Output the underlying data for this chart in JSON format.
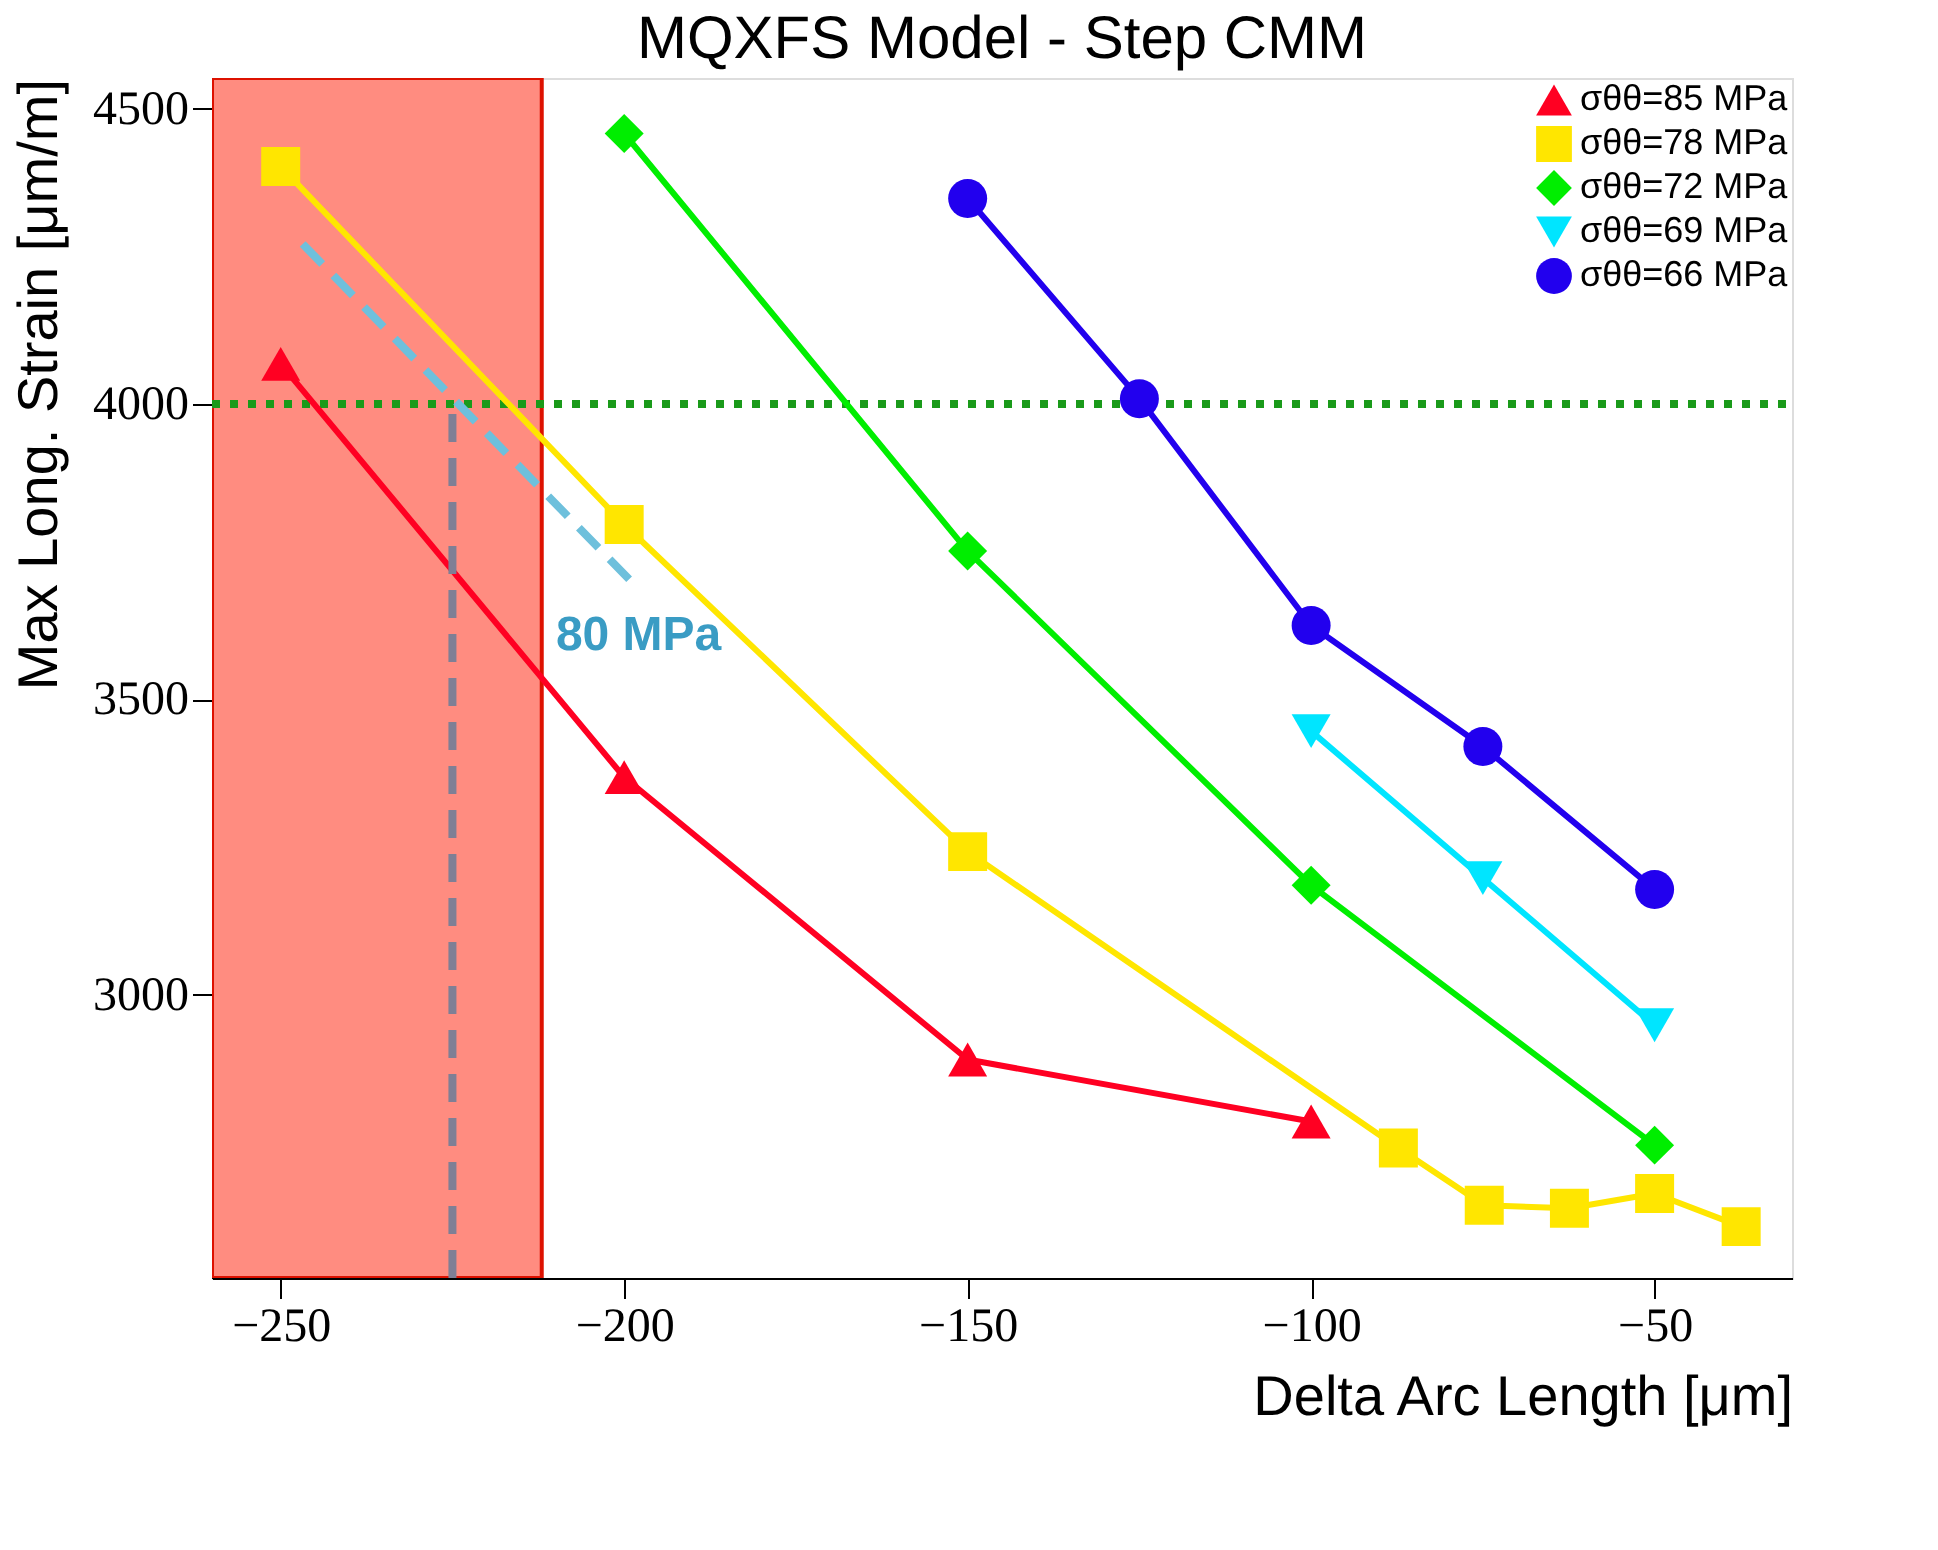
{
  "chart_data": {
    "type": "line",
    "title": "MQXFS Model - Step CMM",
    "xlabel": "Delta Arc Length [μm]",
    "ylabel": "Max Long. Strain [μm/m]",
    "xlim": [
      -260,
      -30
    ],
    "ylim": [
      2520,
      4552
    ],
    "xticks": [
      -250,
      -200,
      -150,
      -100,
      -50
    ],
    "yticks": [
      3000,
      3500,
      4000,
      4500
    ],
    "grid": false,
    "legend": "top right",
    "line_style": "solid",
    "series": [
      {
        "name": "σθθ=85 MPa",
        "color": "#ff0022",
        "marker": "triangle",
        "x": [
          -250,
          -200,
          -150,
          -100
        ],
        "values": [
          4068,
          3368,
          2890,
          2785
        ]
      },
      {
        "name": "σθθ=78 MPa",
        "color": "#ffe600",
        "marker": "square",
        "x": [
          -250,
          -200,
          -150,
          -87.3,
          -74.8,
          -62.4,
          -50,
          -37.4
        ],
        "values": [
          4402,
          3796,
          3242,
          2740,
          2643,
          2638,
          2663,
          2607
        ]
      },
      {
        "name": "σθθ=72 MPa",
        "color": "#00ee00",
        "marker": "diamond",
        "x": [
          -200,
          -150,
          -100,
          -50
        ],
        "values": [
          4458,
          3751,
          3185,
          2745
        ]
      },
      {
        "name": "σθθ=69 MPa",
        "color": "#00e5ff",
        "marker": "triangle-down",
        "x": [
          -100,
          -75,
          -50
        ],
        "values": [
          3446,
          3197,
          2948
        ]
      },
      {
        "name": "σθθ=66 MPa",
        "color": "#2200ee",
        "marker": "circle",
        "x": [
          -150,
          -125,
          -100,
          -75,
          -50
        ],
        "values": [
          4348,
          4009,
          3625,
          3420,
          3178
        ]
      },
      {
        "color": "#6ec0dc",
        "marker": "none",
        "line_style": "dashed",
        "x": [
          -246.8,
          -198.6
        ],
        "values": [
          4271,
          3695
        ]
      },
      {
        "color": "#7f7f95",
        "marker": "none",
        "line_style": "dashed",
        "x": [
          -225,
          -225
        ],
        "values": [
          2520,
          4000
        ]
      }
    ],
    "ref_lines": [
      {
        "axis": "y",
        "value": 4000,
        "color": "#1a9a1a",
        "line_style": "dotted"
      }
    ],
    "bands": [
      {
        "axis": "x",
        "from": -260,
        "to": -212,
        "color": "#ff8c80"
      }
    ],
    "annotations": [
      "80 MPa"
    ]
  }
}
